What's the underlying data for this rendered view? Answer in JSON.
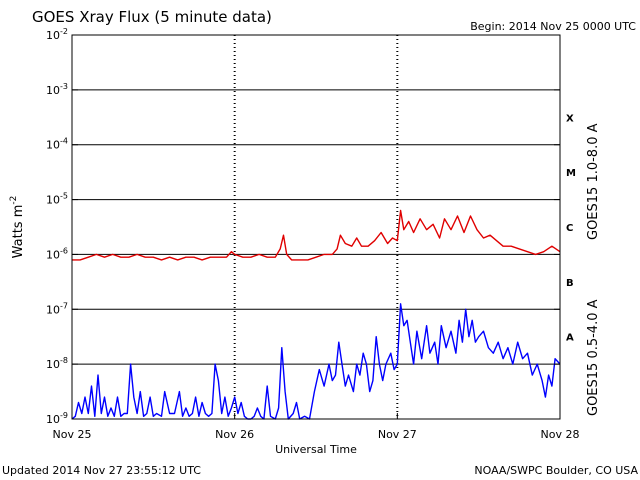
{
  "chart_data": {
    "type": "line",
    "title": "GOES Xray Flux (5 minute data)",
    "begin": "Begin:  2014 Nov 25 0000 UTC",
    "ylabel": "Watts m",
    "ylabel_sup": "-2",
    "xlabel": "Universal Time",
    "footer_left": "Updated 2014 Nov 27 23:55:12 UTC",
    "footer_right": "NOAA/SWPC Boulder, CO USA",
    "y_scale": "log",
    "ylim_exp": [
      -9,
      -2
    ],
    "xlim_days": [
      0,
      3
    ],
    "y_ticks": [
      {
        "base": "10",
        "exp": "-9",
        "value": -9
      },
      {
        "base": "10",
        "exp": "-8",
        "value": -8
      },
      {
        "base": "10",
        "exp": "-7",
        "value": -7
      },
      {
        "base": "10",
        "exp": "-6",
        "value": -6
      },
      {
        "base": "10",
        "exp": "-5",
        "value": -5
      },
      {
        "base": "10",
        "exp": "-4",
        "value": -4
      },
      {
        "base": "10",
        "exp": "-3",
        "value": -3
      },
      {
        "base": "10",
        "exp": "-2",
        "value": -2
      }
    ],
    "x_ticks": [
      {
        "label": "Nov 25",
        "day": 0
      },
      {
        "label": "Nov 26",
        "day": 1
      },
      {
        "label": "Nov 27",
        "day": 2
      },
      {
        "label": "Nov 28",
        "day": 3
      }
    ],
    "flare_classes": [
      {
        "label": "X",
        "exp": -3.5
      },
      {
        "label": "M",
        "exp": -4.5
      },
      {
        "label": "C",
        "exp": -5.5
      },
      {
        "label": "B",
        "exp": -6.5
      },
      {
        "label": "A",
        "exp": -7.5
      }
    ],
    "grid": "horizontal lines at each decade from 1e-8 to 1e-3",
    "series": [
      {
        "name": "GOES15 1.0-8.0 A",
        "color": "#e00000",
        "points": [
          [
            0.0,
            -6.1
          ],
          [
            0.05,
            -6.1
          ],
          [
            0.1,
            -6.05
          ],
          [
            0.15,
            -6.0
          ],
          [
            0.2,
            -6.05
          ],
          [
            0.25,
            -6.0
          ],
          [
            0.3,
            -6.05
          ],
          [
            0.35,
            -6.05
          ],
          [
            0.4,
            -6.0
          ],
          [
            0.45,
            -6.05
          ],
          [
            0.5,
            -6.05
          ],
          [
            0.55,
            -6.1
          ],
          [
            0.6,
            -6.05
          ],
          [
            0.65,
            -6.1
          ],
          [
            0.7,
            -6.05
          ],
          [
            0.75,
            -6.05
          ],
          [
            0.8,
            -6.1
          ],
          [
            0.85,
            -6.05
          ],
          [
            0.9,
            -6.05
          ],
          [
            0.95,
            -6.05
          ],
          [
            0.98,
            -5.95
          ],
          [
            1.0,
            -6.0
          ],
          [
            1.05,
            -6.05
          ],
          [
            1.1,
            -6.05
          ],
          [
            1.15,
            -6.0
          ],
          [
            1.2,
            -6.05
          ],
          [
            1.25,
            -6.05
          ],
          [
            1.28,
            -5.9
          ],
          [
            1.3,
            -5.65
          ],
          [
            1.32,
            -6.0
          ],
          [
            1.35,
            -6.1
          ],
          [
            1.4,
            -6.1
          ],
          [
            1.45,
            -6.1
          ],
          [
            1.5,
            -6.05
          ],
          [
            1.55,
            -6.0
          ],
          [
            1.6,
            -6.0
          ],
          [
            1.63,
            -5.9
          ],
          [
            1.65,
            -5.65
          ],
          [
            1.68,
            -5.8
          ],
          [
            1.72,
            -5.85
          ],
          [
            1.75,
            -5.7
          ],
          [
            1.78,
            -5.85
          ],
          [
            1.82,
            -5.85
          ],
          [
            1.86,
            -5.75
          ],
          [
            1.9,
            -5.6
          ],
          [
            1.94,
            -5.8
          ],
          [
            1.97,
            -5.7
          ],
          [
            2.0,
            -5.75
          ],
          [
            2.02,
            -5.2
          ],
          [
            2.04,
            -5.55
          ],
          [
            2.07,
            -5.4
          ],
          [
            2.1,
            -5.6
          ],
          [
            2.14,
            -5.35
          ],
          [
            2.18,
            -5.55
          ],
          [
            2.22,
            -5.45
          ],
          [
            2.26,
            -5.7
          ],
          [
            2.29,
            -5.35
          ],
          [
            2.33,
            -5.55
          ],
          [
            2.37,
            -5.3
          ],
          [
            2.41,
            -5.6
          ],
          [
            2.45,
            -5.3
          ],
          [
            2.49,
            -5.55
          ],
          [
            2.53,
            -5.7
          ],
          [
            2.57,
            -5.65
          ],
          [
            2.61,
            -5.75
          ],
          [
            2.65,
            -5.85
          ],
          [
            2.7,
            -5.85
          ],
          [
            2.75,
            -5.9
          ],
          [
            2.8,
            -5.95
          ],
          [
            2.85,
            -6.0
          ],
          [
            2.9,
            -5.95
          ],
          [
            2.95,
            -5.85
          ],
          [
            3.0,
            -5.95
          ]
        ]
      },
      {
        "name": "GOES15 0.5-4.0 A",
        "color": "#0000ff",
        "points": [
          [
            0.0,
            -9.0
          ],
          [
            0.02,
            -8.95
          ],
          [
            0.04,
            -8.7
          ],
          [
            0.06,
            -8.9
          ],
          [
            0.08,
            -8.6
          ],
          [
            0.1,
            -8.9
          ],
          [
            0.12,
            -8.4
          ],
          [
            0.14,
            -8.95
          ],
          [
            0.16,
            -8.2
          ],
          [
            0.18,
            -8.9
          ],
          [
            0.2,
            -8.6
          ],
          [
            0.22,
            -8.95
          ],
          [
            0.24,
            -8.8
          ],
          [
            0.26,
            -8.95
          ],
          [
            0.28,
            -8.6
          ],
          [
            0.3,
            -8.95
          ],
          [
            0.32,
            -8.9
          ],
          [
            0.34,
            -8.9
          ],
          [
            0.36,
            -8.0
          ],
          [
            0.38,
            -8.6
          ],
          [
            0.4,
            -8.9
          ],
          [
            0.42,
            -8.5
          ],
          [
            0.44,
            -8.95
          ],
          [
            0.46,
            -8.9
          ],
          [
            0.48,
            -8.6
          ],
          [
            0.5,
            -8.95
          ],
          [
            0.52,
            -8.9
          ],
          [
            0.55,
            -8.95
          ],
          [
            0.57,
            -8.5
          ],
          [
            0.6,
            -8.9
          ],
          [
            0.63,
            -8.9
          ],
          [
            0.66,
            -8.5
          ],
          [
            0.68,
            -8.95
          ],
          [
            0.7,
            -8.8
          ],
          [
            0.72,
            -8.95
          ],
          [
            0.74,
            -8.9
          ],
          [
            0.76,
            -8.6
          ],
          [
            0.78,
            -8.95
          ],
          [
            0.8,
            -8.7
          ],
          [
            0.82,
            -8.9
          ],
          [
            0.84,
            -8.95
          ],
          [
            0.86,
            -8.9
          ],
          [
            0.88,
            -8.0
          ],
          [
            0.9,
            -8.3
          ],
          [
            0.92,
            -8.9
          ],
          [
            0.94,
            -8.6
          ],
          [
            0.96,
            -8.95
          ],
          [
            0.98,
            -8.8
          ],
          [
            1.0,
            -8.6
          ],
          [
            1.02,
            -8.9
          ],
          [
            1.04,
            -8.7
          ],
          [
            1.06,
            -8.95
          ],
          [
            1.08,
            -9.0
          ],
          [
            1.1,
            -9.0
          ],
          [
            1.12,
            -8.95
          ],
          [
            1.14,
            -8.8
          ],
          [
            1.16,
            -8.95
          ],
          [
            1.18,
            -9.0
          ],
          [
            1.2,
            -8.4
          ],
          [
            1.22,
            -8.95
          ],
          [
            1.25,
            -9.0
          ],
          [
            1.27,
            -8.8
          ],
          [
            1.29,
            -7.7
          ],
          [
            1.31,
            -8.5
          ],
          [
            1.33,
            -9.0
          ],
          [
            1.36,
            -8.9
          ],
          [
            1.38,
            -8.7
          ],
          [
            1.4,
            -9.0
          ],
          [
            1.43,
            -8.95
          ],
          [
            1.46,
            -9.0
          ],
          [
            1.49,
            -8.5
          ],
          [
            1.52,
            -8.1
          ],
          [
            1.55,
            -8.4
          ],
          [
            1.58,
            -8.0
          ],
          [
            1.6,
            -8.3
          ],
          [
            1.62,
            -8.2
          ],
          [
            1.64,
            -7.6
          ],
          [
            1.66,
            -8.0
          ],
          [
            1.68,
            -8.4
          ],
          [
            1.7,
            -8.2
          ],
          [
            1.73,
            -8.5
          ],
          [
            1.75,
            -8.0
          ],
          [
            1.77,
            -8.2
          ],
          [
            1.79,
            -7.8
          ],
          [
            1.81,
            -8.0
          ],
          [
            1.83,
            -8.5
          ],
          [
            1.85,
            -8.3
          ],
          [
            1.87,
            -7.5
          ],
          [
            1.89,
            -8.0
          ],
          [
            1.91,
            -8.3
          ],
          [
            1.93,
            -8.0
          ],
          [
            1.96,
            -7.8
          ],
          [
            1.98,
            -8.1
          ],
          [
            2.0,
            -8.0
          ],
          [
            2.02,
            -6.9
          ],
          [
            2.04,
            -7.3
          ],
          [
            2.06,
            -7.2
          ],
          [
            2.08,
            -7.6
          ],
          [
            2.1,
            -8.0
          ],
          [
            2.12,
            -7.4
          ],
          [
            2.15,
            -7.9
          ],
          [
            2.18,
            -7.3
          ],
          [
            2.2,
            -7.8
          ],
          [
            2.23,
            -7.6
          ],
          [
            2.25,
            -8.0
          ],
          [
            2.27,
            -7.3
          ],
          [
            2.3,
            -7.7
          ],
          [
            2.33,
            -7.4
          ],
          [
            2.36,
            -7.8
          ],
          [
            2.38,
            -7.2
          ],
          [
            2.4,
            -7.6
          ],
          [
            2.42,
            -7.0
          ],
          [
            2.44,
            -7.5
          ],
          [
            2.46,
            -7.2
          ],
          [
            2.48,
            -7.6
          ],
          [
            2.5,
            -7.5
          ],
          [
            2.53,
            -7.4
          ],
          [
            2.56,
            -7.7
          ],
          [
            2.59,
            -7.8
          ],
          [
            2.62,
            -7.6
          ],
          [
            2.65,
            -7.9
          ],
          [
            2.68,
            -7.7
          ],
          [
            2.71,
            -8.0
          ],
          [
            2.74,
            -7.6
          ],
          [
            2.77,
            -7.9
          ],
          [
            2.8,
            -7.8
          ],
          [
            2.83,
            -8.2
          ],
          [
            2.86,
            -8.0
          ],
          [
            2.89,
            -8.3
          ],
          [
            2.91,
            -8.6
          ],
          [
            2.93,
            -8.2
          ],
          [
            2.95,
            -8.4
          ],
          [
            2.97,
            -7.9
          ],
          [
            3.0,
            -8.0
          ]
        ]
      }
    ]
  }
}
